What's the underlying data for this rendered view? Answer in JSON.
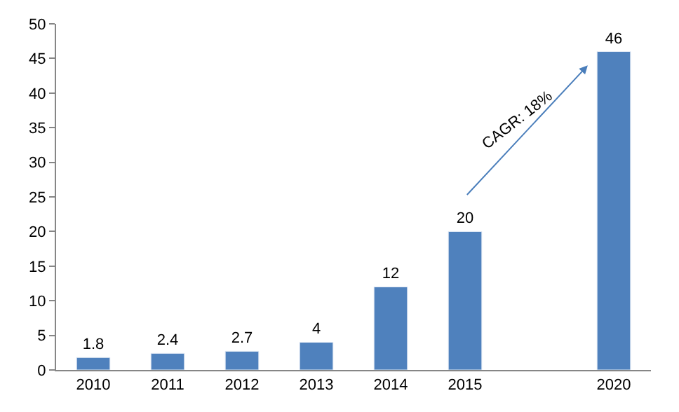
{
  "chart_data": {
    "type": "bar",
    "categories": [
      "2010",
      "2011",
      "2012",
      "2013",
      "2014",
      "2015",
      null,
      "2020"
    ],
    "values": [
      1.8,
      2.4,
      2.7,
      4,
      12,
      20,
      null,
      46
    ],
    "color": "#4f81bd",
    "data_labels": true,
    "ylim": [
      0,
      50
    ],
    "yticks": [
      0,
      5,
      10,
      15,
      20,
      25,
      30,
      35,
      40,
      45,
      50
    ],
    "legend": false,
    "annotations": [
      "CAGR: 18%"
    ]
  }
}
